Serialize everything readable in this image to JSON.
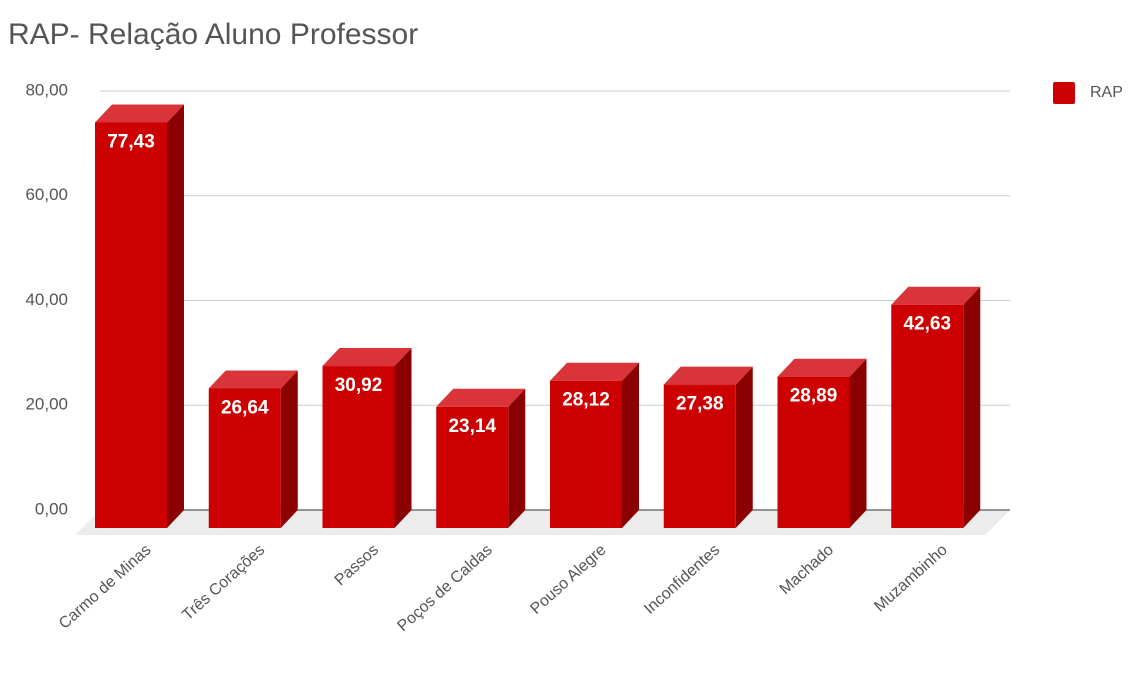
{
  "chart_data": {
    "type": "bar3d",
    "title": "RAP- Relação Aluno Professor",
    "categories": [
      "Carmo de Minas",
      "Três Corações",
      "Passos",
      "Poços de Caldas",
      "Pouso Alegre",
      "Inconfidentes",
      "Machado",
      "Muzambinho"
    ],
    "series": [
      {
        "name": "RAP",
        "color": "#cc0000",
        "values": [
          77.43,
          26.64,
          30.92,
          23.14,
          28.12,
          27.38,
          28.89,
          42.63
        ],
        "value_labels": [
          "77,43",
          "26,64",
          "30,92",
          "23,14",
          "28,12",
          "27,38",
          "28,89",
          "42,63"
        ]
      }
    ],
    "ylim": [
      0,
      80
    ],
    "yticks": [
      {
        "value": 0,
        "label": "0,00"
      },
      {
        "value": 20,
        "label": "20,00"
      },
      {
        "value": 40,
        "label": "40,00"
      },
      {
        "value": 60,
        "label": "60,00"
      },
      {
        "value": 80,
        "label": "80,00"
      }
    ],
    "grid": true,
    "legend": "right"
  }
}
